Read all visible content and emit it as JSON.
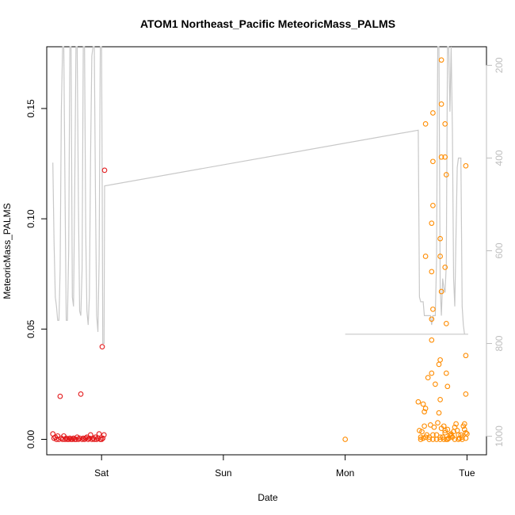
{
  "chart_data": {
    "type": "scatter",
    "title": "ATOM1 Northeast_Pacific MeteoricMass_PALMS",
    "xlabel": "Date",
    "ylabel": "MeteoricMass_PALMS",
    "xlim": [
      -0.45,
      3.16
    ],
    "ylim": [
      -0.007,
      0.178
    ],
    "x_ticks": [
      {
        "value": 0,
        "label": "Sat"
      },
      {
        "value": 1,
        "label": "Sun"
      },
      {
        "value": 2,
        "label": "Mon"
      },
      {
        "value": 3,
        "label": "Tue"
      }
    ],
    "y_ticks": [
      {
        "value": 0.0,
        "label": "0.00"
      },
      {
        "value": 0.05,
        "label": "0.05"
      },
      {
        "value": 0.1,
        "label": "0.10"
      },
      {
        "value": 0.15,
        "label": "0.15"
      }
    ],
    "right_axis": {
      "label": "",
      "lim": [
        1040,
        160
      ],
      "color": "#bebebe",
      "ticks": [
        {
          "value": 200,
          "label": "200"
        },
        {
          "value": 400,
          "label": "400"
        },
        {
          "value": 600,
          "label": "600"
        },
        {
          "value": 800,
          "label": "800"
        },
        {
          "value": 1000,
          "label": "1000"
        }
      ]
    },
    "grid": false,
    "legend": "none",
    "pressure_line": {
      "color": "#c8c8c8",
      "points": [
        [
          -0.4,
          410
        ],
        [
          -0.39,
          580
        ],
        [
          -0.38,
          700
        ],
        [
          -0.37,
          720
        ],
        [
          -0.36,
          750
        ],
        [
          -0.35,
          750
        ],
        [
          -0.34,
          640
        ],
        [
          -0.33,
          300
        ],
        [
          -0.32,
          160
        ],
        [
          -0.31,
          160
        ],
        [
          -0.3,
          480
        ],
        [
          -0.29,
          750
        ],
        [
          -0.28,
          750
        ],
        [
          -0.27,
          600
        ],
        [
          -0.26,
          160
        ],
        [
          -0.25,
          160
        ],
        [
          -0.24,
          700
        ],
        [
          -0.23,
          720
        ],
        [
          -0.22,
          450
        ],
        [
          -0.21,
          160
        ],
        [
          -0.2,
          160
        ],
        [
          -0.19,
          500
        ],
        [
          -0.18,
          730
        ],
        [
          -0.17,
          740
        ],
        [
          -0.16,
          640
        ],
        [
          -0.15,
          160
        ],
        [
          -0.14,
          160
        ],
        [
          -0.13,
          560
        ],
        [
          -0.12,
          730
        ],
        [
          -0.11,
          760
        ],
        [
          -0.1,
          700
        ],
        [
          -0.09,
          400
        ],
        [
          -0.08,
          180
        ],
        [
          -0.07,
          160
        ],
        [
          -0.06,
          160
        ],
        [
          -0.05,
          480
        ],
        [
          -0.04,
          740
        ],
        [
          -0.03,
          775
        ],
        [
          -0.02,
          620
        ],
        [
          -0.01,
          160
        ],
        [
          0.0,
          160
        ],
        [
          0.005,
          460
        ],
        [
          0.01,
          800
        ],
        [
          0.02,
          800
        ],
        [
          0.025,
          460
        ],
        [
          2.6,
          340
        ],
        [
          2.61,
          700
        ],
        [
          2.62,
          710
        ],
        [
          2.63,
          710
        ],
        [
          2.64,
          710
        ],
        [
          2.65,
          740
        ],
        [
          2.66,
          740
        ],
        [
          2.7,
          740
        ],
        [
          2.71,
          760
        ],
        [
          2.72,
          740
        ],
        [
          2.73,
          740
        ],
        [
          2.74,
          740
        ],
        [
          2.75,
          620
        ],
        [
          2.76,
          160
        ],
        [
          2.77,
          160
        ],
        [
          2.78,
          680
        ],
        [
          2.79,
          740
        ],
        [
          2.8,
          660
        ],
        [
          2.81,
          680
        ],
        [
          2.82,
          690
        ],
        [
          2.83,
          630
        ],
        [
          2.84,
          160
        ],
        [
          2.85,
          160
        ],
        [
          2.86,
          300
        ],
        [
          2.87,
          160
        ],
        [
          2.88,
          340
        ],
        [
          2.89,
          660
        ],
        [
          2.9,
          720
        ],
        [
          2.91,
          560
        ],
        [
          2.92,
          420
        ],
        [
          2.93,
          400
        ],
        [
          2.94,
          400
        ],
        [
          2.95,
          400
        ],
        [
          2.96,
          720
        ],
        [
          2.97,
          760
        ],
        [
          2.98,
          780
        ],
        [
          2.99,
          780
        ],
        [
          3.0,
          780
        ],
        [
          3.005,
          780
        ],
        [
          3.01,
          780
        ],
        [
          2.0,
          780
        ]
      ]
    },
    "series": [
      {
        "color": "#e31a1c",
        "points": [
          [
            -0.4,
            0.0025
          ],
          [
            -0.39,
            0.0005
          ],
          [
            -0.38,
            0.001
          ],
          [
            -0.37,
            0.0
          ],
          [
            -0.36,
            0.0015
          ],
          [
            -0.35,
            0.0
          ],
          [
            -0.34,
            0.0195
          ],
          [
            -0.33,
            0.0005
          ],
          [
            -0.32,
            0.0
          ],
          [
            -0.31,
            0.0015
          ],
          [
            -0.3,
            0.0
          ],
          [
            -0.29,
            0.0005
          ],
          [
            -0.28,
            0.0
          ],
          [
            -0.27,
            0.0
          ],
          [
            -0.26,
            0.0005
          ],
          [
            -0.25,
            0.0
          ],
          [
            -0.24,
            0.0
          ],
          [
            -0.23,
            0.0005
          ],
          [
            -0.22,
            0.0
          ],
          [
            -0.21,
            0.0
          ],
          [
            -0.2,
            0.001
          ],
          [
            -0.19,
            0.0
          ],
          [
            -0.18,
            0.0005
          ],
          [
            -0.17,
            0.0205
          ],
          [
            -0.16,
            0.0
          ],
          [
            -0.15,
            0.0005
          ],
          [
            -0.14,
            0.0
          ],
          [
            -0.13,
            0.0005
          ],
          [
            -0.12,
            0.001
          ],
          [
            -0.11,
            0.0
          ],
          [
            -0.1,
            0.0005
          ],
          [
            -0.09,
            0.002
          ],
          [
            -0.08,
            0.0
          ],
          [
            -0.07,
            0.0005
          ],
          [
            -0.06,
            0.0
          ],
          [
            -0.05,
            0.001
          ],
          [
            -0.04,
            0.0
          ],
          [
            -0.03,
            0.0005
          ],
          [
            -0.02,
            0.0025
          ],
          [
            -0.01,
            0.0
          ],
          [
            0.0,
            0.0
          ],
          [
            0.005,
            0.042
          ],
          [
            0.01,
            0.0005
          ],
          [
            0.02,
            0.002
          ],
          [
            0.025,
            0.122
          ]
        ]
      },
      {
        "color": "#ff8c00",
        "points": [
          [
            2.0,
            0.0
          ],
          [
            2.6,
            0.017
          ],
          [
            2.61,
            0.004
          ],
          [
            2.62,
            0.001
          ],
          [
            2.63,
            0.0035
          ],
          [
            2.64,
            0.0005
          ],
          [
            2.65,
            0.0125
          ],
          [
            2.66,
            0.014
          ],
          [
            2.67,
            0.002
          ],
          [
            2.68,
            0.028
          ],
          [
            2.69,
            0.001
          ],
          [
            2.7,
            0.0065
          ],
          [
            2.71,
            0.03
          ],
          [
            2.72,
            0.002
          ],
          [
            2.73,
            0.0055
          ],
          [
            2.74,
            0.025
          ],
          [
            2.75,
            0.0
          ],
          [
            2.76,
            0.0075
          ],
          [
            2.77,
            0.012
          ],
          [
            2.78,
            0.0
          ],
          [
            2.79,
            0.005
          ],
          [
            2.8,
            0.001
          ],
          [
            2.81,
            0.006
          ],
          [
            2.82,
            0.003
          ],
          [
            2.83,
            0.0
          ],
          [
            2.84,
            0.0045
          ],
          [
            2.85,
            0.0005
          ],
          [
            2.86,
            0.002
          ],
          [
            2.87,
            0.0025
          ],
          [
            2.88,
            0.001
          ],
          [
            2.89,
            0.0035
          ],
          [
            2.9,
            0.0055
          ],
          [
            2.91,
            0.007
          ],
          [
            2.92,
            0.004
          ],
          [
            2.93,
            0.0
          ],
          [
            2.94,
            0.0005
          ],
          [
            2.95,
            0.002
          ],
          [
            2.96,
            0.0
          ],
          [
            2.97,
            0.006
          ],
          [
            2.98,
            0.0045
          ],
          [
            2.99,
            0.003
          ],
          [
            3.0,
            0.0025
          ],
          [
            2.62,
            0.0
          ],
          [
            2.66,
            0.001
          ],
          [
            2.69,
            0.0
          ],
          [
            2.72,
            0.0
          ],
          [
            2.75,
            0.002
          ],
          [
            2.78,
            0.001
          ],
          [
            2.81,
            0.0
          ],
          [
            2.84,
            0.0
          ],
          [
            2.87,
            0.0015
          ],
          [
            2.9,
            0.0
          ],
          [
            2.93,
            0.002
          ],
          [
            2.96,
            0.001
          ],
          [
            2.99,
            0.0005
          ],
          [
            2.79,
            0.172
          ],
          [
            2.79,
            0.152
          ],
          [
            2.72,
            0.148
          ],
          [
            2.66,
            0.143
          ],
          [
            2.82,
            0.143
          ],
          [
            2.79,
            0.128
          ],
          [
            2.82,
            0.128
          ],
          [
            2.72,
            0.126
          ],
          [
            2.99,
            0.124
          ],
          [
            2.83,
            0.12
          ],
          [
            2.72,
            0.106
          ],
          [
            2.71,
            0.098
          ],
          [
            2.78,
            0.091
          ],
          [
            2.78,
            0.083
          ],
          [
            2.66,
            0.083
          ],
          [
            2.71,
            0.076
          ],
          [
            2.82,
            0.078
          ],
          [
            2.79,
            0.067
          ],
          [
            2.72,
            0.059
          ],
          [
            2.71,
            0.0545
          ],
          [
            2.83,
            0.0525
          ],
          [
            2.71,
            0.045
          ],
          [
            2.99,
            0.038
          ],
          [
            2.78,
            0.036
          ],
          [
            2.77,
            0.034
          ],
          [
            2.83,
            0.03
          ],
          [
            2.84,
            0.024
          ],
          [
            2.99,
            0.0205
          ],
          [
            2.78,
            0.018
          ],
          [
            2.64,
            0.016
          ],
          [
            2.98,
            0.007
          ],
          [
            2.65,
            0.006
          ],
          [
            2.82,
            0.004
          ]
        ]
      }
    ]
  }
}
